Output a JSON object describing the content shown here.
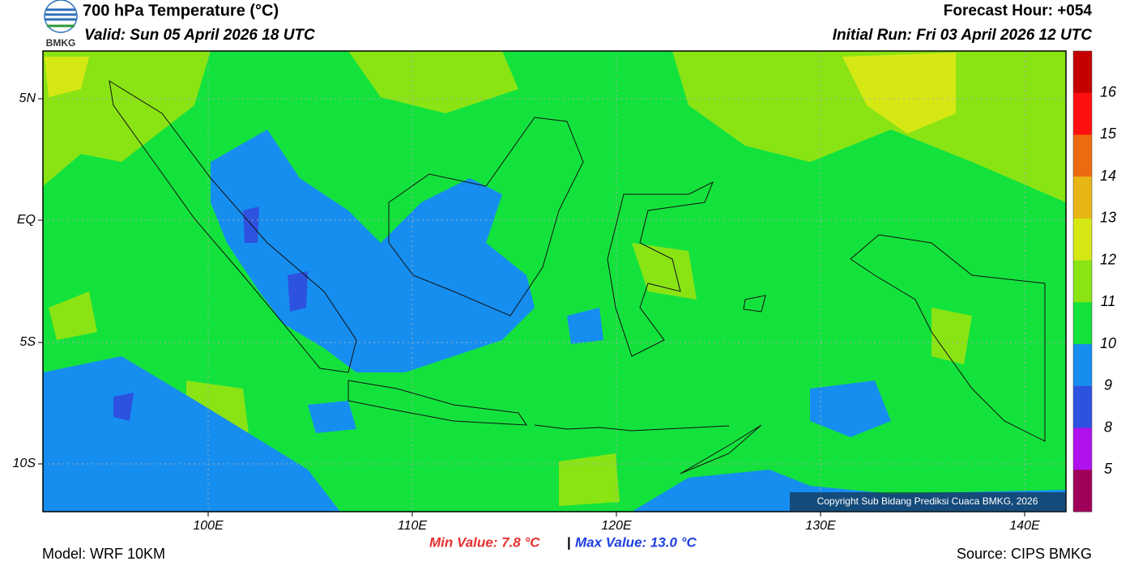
{
  "header": {
    "logo": "BMKG",
    "title": "700 hPa Temperature (°C)",
    "valid": "Valid: Sun 05 April 2026 18 UTC",
    "forecast_hour": "Forecast Hour: +054",
    "initial_run": "Initial Run: Fri 03 April 2026 12 UTC"
  },
  "map": {
    "lat_labels": [
      "5N",
      "EQ",
      "5S",
      "10S"
    ],
    "lon_labels": [
      "100E",
      "110E",
      "120E",
      "130E",
      "140E"
    ],
    "copyright": "Copyright Sub Bidang Prediksi Cuaca BMKG, 2026"
  },
  "colorbar": {
    "labels": [
      "16",
      "15",
      "14",
      "13",
      "12",
      "11",
      "10",
      "9",
      "8",
      "5"
    ],
    "colors": [
      "#c40000",
      "#ff1010",
      "#ee6a10",
      "#e8b614",
      "#d6e814",
      "#8ae414",
      "#14e23c",
      "#168ef0",
      "#2e52e0",
      "#b012ee",
      "#a0005a"
    ]
  },
  "footer": {
    "model": "Model: WRF 10KM",
    "min": "Min Value: 7.8 °C",
    "separator": "|",
    "max": "Max Value: 13.0 °C",
    "source": "Source: CIPS BMKG"
  }
}
